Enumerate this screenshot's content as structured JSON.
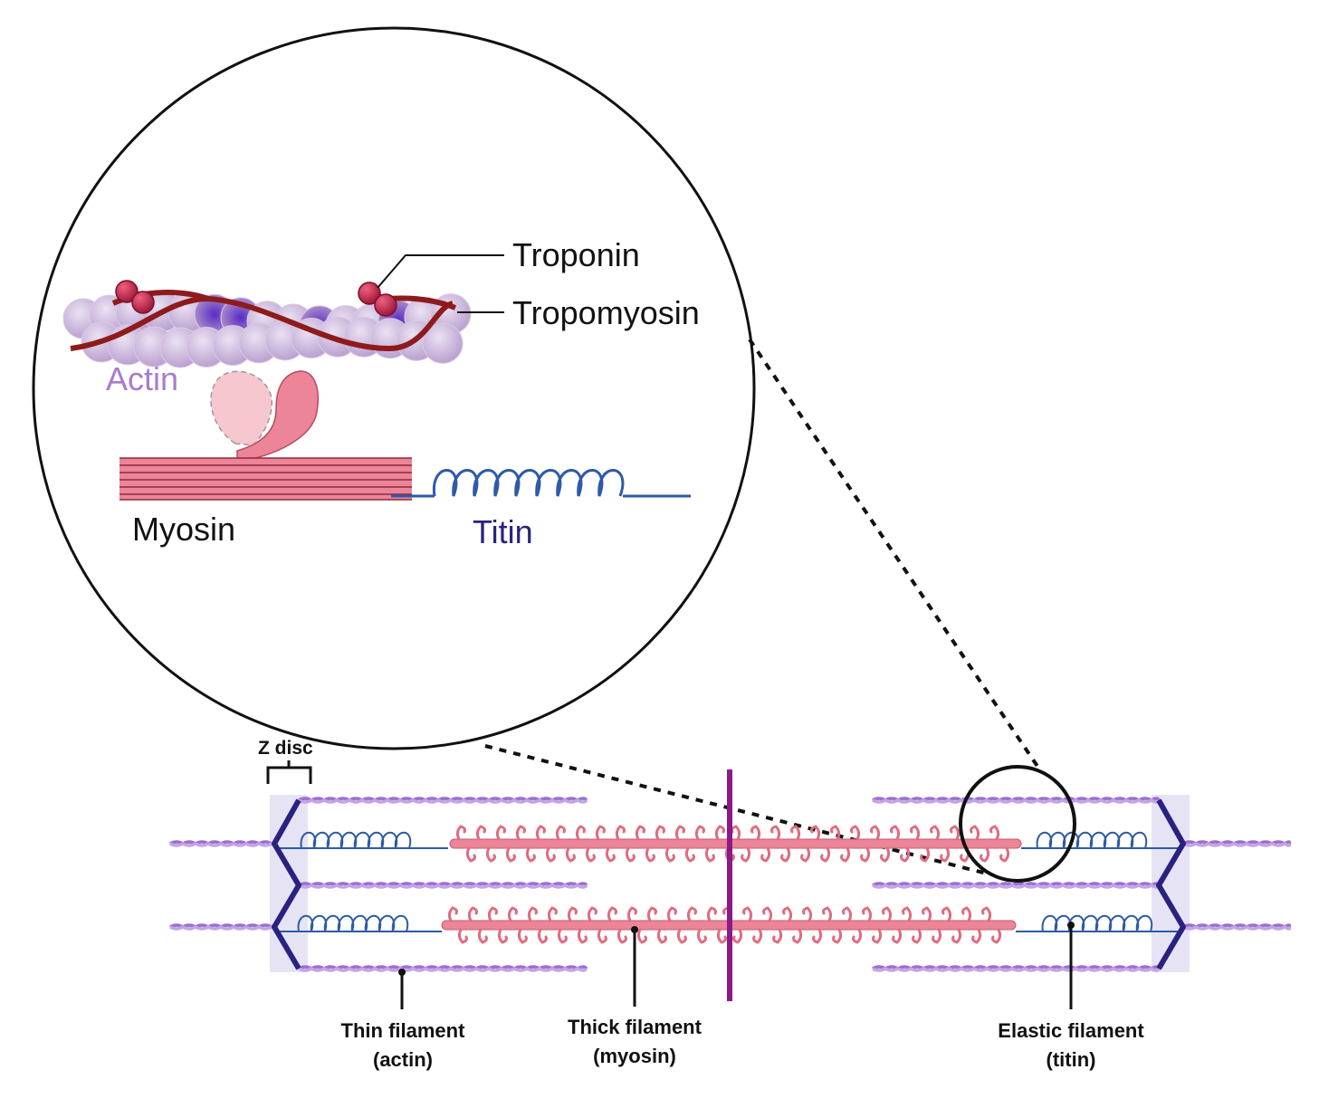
{
  "zoom_labels": {
    "troponin": "Troponin",
    "tropomyosin": "Tropomyosin",
    "actin": "Actin",
    "myosin": "Myosin",
    "titin": "Titin"
  },
  "sarcomere_labels": {
    "z_disc": "Z disc",
    "thin_filament": {
      "line1": "Thin filament",
      "line2": "(actin)"
    },
    "thick_filament": {
      "line1": "Thick filament",
      "line2": "(myosin)"
    },
    "elastic_filament": {
      "line1": "Elastic filament",
      "line2": "(titin)"
    }
  },
  "colors": {
    "actin": "#a77bd0",
    "actin_bead": "#c8b2dc",
    "tropomyosin": "#8e1b1b",
    "troponin": "#c0274a",
    "myosin": "#e8788c",
    "titin": "#2e5aa8",
    "z_disc": "#2a2280",
    "m_line": "#8a1a8a",
    "z_region": "#e6e4f4"
  }
}
